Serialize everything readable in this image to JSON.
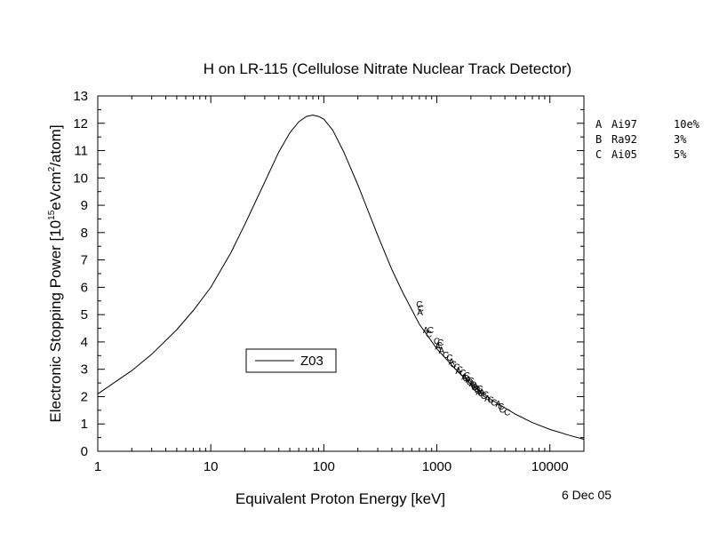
{
  "chart_data": {
    "type": "line",
    "title": "H on LR-115 (Cellulose Nitrate Nuclear Track Detector)",
    "xlabel": "Equivalent Proton Energy [keV]",
    "ylabel": {
      "prefix": "Electronic Stopping Power [10",
      "sup1": "15",
      "mid": "eVcm",
      "sup2": "2",
      "suffix": "/atom]"
    },
    "x_scale": "log",
    "xlim": [
      1,
      20000
    ],
    "ylim": [
      0,
      13
    ],
    "x_ticks": [
      {
        "value": 1,
        "label": "1"
      },
      {
        "value": 10,
        "label": "10"
      },
      {
        "value": 100,
        "label": "100"
      },
      {
        "value": 1000,
        "label": "1000"
      },
      {
        "value": 10000,
        "label": "10000"
      }
    ],
    "y_ticks": [
      0,
      1,
      2,
      3,
      4,
      5,
      6,
      7,
      8,
      9,
      10,
      11,
      12,
      13
    ],
    "legend": {
      "placement": "lower-left",
      "entry": "Z03"
    },
    "dataset_legend": [
      {
        "letter": "A",
        "code": "Ai97",
        "error": "10e%"
      },
      {
        "letter": "B",
        "code": "Ra92",
        "error": "3%"
      },
      {
        "letter": "C",
        "code": "Ai05",
        "error": "5%"
      }
    ],
    "date": "6 Dec 05",
    "series": [
      {
        "name": "Z03",
        "x": [
          1,
          2,
          3,
          5,
          7,
          10,
          15,
          20,
          30,
          40,
          50,
          60,
          70,
          80,
          90,
          100,
          120,
          150,
          200,
          300,
          400,
          500,
          700,
          1000,
          1500,
          2000,
          3000,
          5000,
          7000,
          10000,
          15000,
          20000
        ],
        "y": [
          2.1,
          2.95,
          3.55,
          4.45,
          5.15,
          6.0,
          7.25,
          8.3,
          9.85,
          10.95,
          11.65,
          12.05,
          12.25,
          12.3,
          12.25,
          12.15,
          11.75,
          10.95,
          9.75,
          7.9,
          6.65,
          5.8,
          4.65,
          3.75,
          2.95,
          2.45,
          1.9,
          1.35,
          1.05,
          0.8,
          0.58,
          0.44
        ]
      },
      {
        "name": "data",
        "x": [
          700,
          710,
          720,
          800,
          850,
          880,
          1000,
          1020,
          1050,
          1080,
          1100,
          1200,
          1300,
          1350,
          1400,
          1500,
          1550,
          1600,
          1700,
          1750,
          1800,
          1850,
          1900,
          1950,
          2000,
          2050,
          2100,
          2150,
          2200,
          2250,
          2300,
          2350,
          2400,
          2450,
          2500,
          2600,
          2700,
          2800,
          3000,
          3200,
          3500,
          3700,
          3800,
          4200
        ],
        "y": [
          5.4,
          5.1,
          5.25,
          4.45,
          4.3,
          4.45,
          4.05,
          3.85,
          3.9,
          4.0,
          3.7,
          3.55,
          3.45,
          3.3,
          3.2,
          3.1,
          2.95,
          3.0,
          2.9,
          2.75,
          2.7,
          2.8,
          2.65,
          2.55,
          2.6,
          2.5,
          2.45,
          2.35,
          2.4,
          2.3,
          2.25,
          2.2,
          2.3,
          2.15,
          2.2,
          2.05,
          2.1,
          1.95,
          1.9,
          1.8,
          1.75,
          1.65,
          1.55,
          1.45
        ],
        "labels": [
          "C",
          "A",
          "C",
          "A",
          "C",
          "C",
          "C",
          "A",
          "C",
          "C",
          "A",
          "C",
          "C",
          "A",
          "C",
          "C",
          "A",
          "C",
          "C",
          "A",
          "C",
          "C",
          "A",
          "C",
          "C",
          "A",
          "C",
          "C",
          "A",
          "C",
          "C",
          "A",
          "C",
          "C",
          "A",
          "C",
          "C",
          "A",
          "C",
          "C",
          "A",
          "C",
          "C",
          "C"
        ]
      }
    ]
  }
}
